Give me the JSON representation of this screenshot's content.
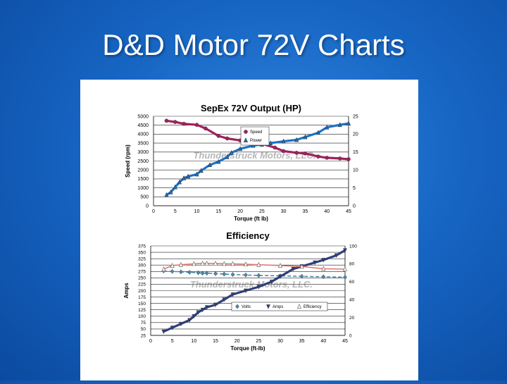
{
  "slide": {
    "title": "D&D Motor 72V Charts"
  },
  "watermark": "Thunderstruck Motors, LLC.",
  "chart_data": [
    {
      "type": "line",
      "title": "SepEx 72V Output (HP)",
      "xlabel": "Torque (ft lb)",
      "ylabel": "Speed (rpm)",
      "xlim": [
        0,
        45
      ],
      "ylim": [
        0,
        5000
      ],
      "y2lim": [
        0,
        25
      ],
      "xticks": [
        0,
        5,
        10,
        15,
        20,
        25,
        30,
        35,
        40,
        45
      ],
      "yticks": [
        0,
        500,
        1000,
        1500,
        2000,
        2500,
        3000,
        3500,
        4000,
        4500,
        5000
      ],
      "y2ticks": [
        0,
        5,
        10,
        15,
        20,
        25
      ],
      "grid": true,
      "legend": "top-center",
      "series": [
        {
          "name": "Speed",
          "axis": "left",
          "color": "#a3205e",
          "marker": "circle",
          "x": [
            3,
            5,
            7,
            10,
            12,
            15,
            17,
            20,
            23,
            25,
            28,
            30,
            33,
            35,
            38,
            40,
            43,
            45
          ],
          "y": [
            4750,
            4680,
            4580,
            4520,
            4320,
            3900,
            3760,
            3650,
            3540,
            3460,
            3250,
            3050,
            2960,
            2920,
            2750,
            2680,
            2640,
            2600
          ]
        },
        {
          "name": "Power",
          "axis": "right",
          "color": "#1c72c8",
          "marker": "triangle",
          "x": [
            3,
            4,
            5,
            6,
            7,
            8,
            10,
            11,
            13,
            15,
            17,
            18,
            20,
            23,
            25,
            27,
            30,
            33,
            35,
            38,
            40,
            43,
            45
          ],
          "y": [
            3.0,
            3.8,
            5.2,
            6.6,
            7.7,
            8.2,
            8.8,
            9.8,
            11.4,
            12.3,
            13.6,
            14.8,
            15.9,
            16.8,
            17.1,
            17.5,
            18.0,
            18.4,
            19.2,
            20.4,
            21.9,
            22.6,
            23.0
          ]
        }
      ]
    },
    {
      "type": "line",
      "title": "Efficiency",
      "xlabel": "Torque (ft-lb)",
      "ylabel": "Amps",
      "xlim": [
        0,
        45
      ],
      "ylim": [
        25,
        375
      ],
      "y2lim": [
        0,
        100
      ],
      "xticks": [
        0,
        5,
        10,
        15,
        20,
        25,
        30,
        35,
        40,
        45
      ],
      "yticks": [
        25,
        50,
        75,
        100,
        125,
        150,
        175,
        200,
        225,
        250,
        275,
        300,
        325,
        350,
        375
      ],
      "y2ticks": [
        0,
        20,
        40,
        60,
        80,
        100
      ],
      "grid": true,
      "legend": "bottom-right",
      "series": [
        {
          "name": "Volts",
          "axis": "right",
          "color": "#4a8aa8",
          "marker": "diamond",
          "x": [
            3,
            5,
            7,
            9,
            11,
            12,
            13,
            15,
            17,
            19,
            22,
            25,
            30,
            35,
            40,
            45
          ],
          "y": [
            72,
            71.5,
            71,
            70.5,
            70,
            69.5,
            69.5,
            69,
            68.5,
            68,
            67.5,
            67,
            66.5,
            66,
            65.5,
            65
          ]
        },
        {
          "name": "Amps",
          "axis": "left",
          "color": "#2e3f7a",
          "marker": "triangle-down",
          "x": [
            3,
            5,
            7,
            9,
            10,
            11,
            12,
            13,
            15,
            17,
            19,
            22,
            25,
            28,
            30,
            33,
            35,
            38,
            40,
            43,
            45
          ],
          "y": [
            40,
            55,
            70,
            85,
            100,
            115,
            125,
            135,
            145,
            165,
            185,
            200,
            215,
            235,
            255,
            285,
            295,
            310,
            320,
            338,
            358
          ]
        },
        {
          "name": "Efficiency",
          "axis": "right",
          "color": "#e87870",
          "marker": "triangle",
          "x": [
            3,
            5,
            7,
            10,
            12,
            13,
            15,
            17,
            19,
            22,
            25,
            30,
            35,
            40,
            45
          ],
          "y": [
            74,
            78,
            79,
            80,
            80.5,
            80.5,
            80.5,
            80,
            80,
            79.5,
            79,
            78,
            77,
            74.5,
            74
          ]
        }
      ]
    }
  ]
}
